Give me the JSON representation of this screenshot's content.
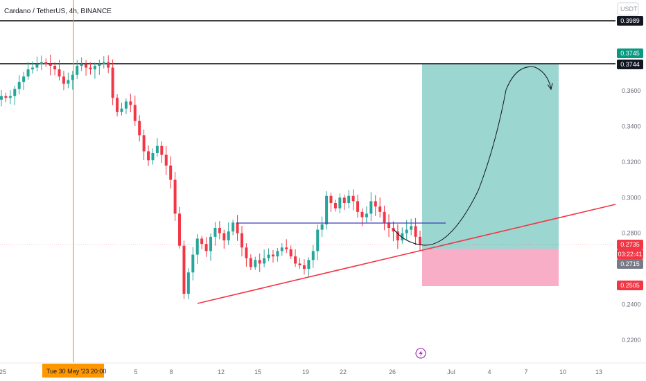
{
  "header": {
    "symbol": "Cardano / TetherUS, 4h, BINANCE",
    "currency": "USDT"
  },
  "colors": {
    "up": "#26a69a",
    "down": "#f23645",
    "trendline": "#f23645",
    "neckline": "#3f3ab8",
    "target_zone": "#80cbc4",
    "stop_zone": "#f8a5c2",
    "cursor": "#ff9800"
  },
  "chart_data": {
    "type": "candlestick",
    "title": "Cardano / TetherUS, 4h, BINANCE",
    "yaxis": {
      "min": 0.21,
      "max": 0.405,
      "ticks": [
        "0.3600",
        "0.3400",
        "0.3200",
        "0.3000",
        "0.2800",
        "0.2400",
        "0.2200"
      ]
    },
    "xaxis": {
      "ticks": [
        "25",
        "5",
        "8",
        "12",
        "15",
        "19",
        "22",
        "26",
        "Jul",
        "4",
        "7",
        "10",
        "13"
      ]
    },
    "crosshair_label": "Tue 30 May '23   20:00",
    "price_tags": [
      {
        "text": "0.3989",
        "value": 0.3989,
        "bg": "#131722"
      },
      {
        "text": "0.3745",
        "value": 0.3745,
        "bg": "#089981"
      },
      {
        "text": "0.3744",
        "value": 0.3744,
        "bg": "#131722"
      },
      {
        "text": "0.2735",
        "value": 0.2735,
        "bg": "#f23645"
      },
      {
        "text": "03:22:41",
        "value": 0.2705,
        "bg": "#f23645"
      },
      {
        "text": "0.2715",
        "value": 0.2715,
        "bg": "#787b86"
      },
      {
        "text": "0.2505",
        "value": 0.2505,
        "bg": "#f23645"
      }
    ],
    "horizontal_lines": [
      0.3989,
      0.3744
    ],
    "position": {
      "entry": 0.2715,
      "target": 0.3745,
      "stop": 0.2505
    },
    "neckline": 0.285,
    "current_price": 0.2735,
    "price_path": [
      0.357,
      0.356,
      0.357,
      0.361,
      0.365,
      0.368,
      0.372,
      0.373,
      0.375,
      0.376,
      0.375,
      0.374,
      0.372,
      0.368,
      0.364,
      0.366,
      0.369,
      0.374,
      0.375,
      0.373,
      0.372,
      0.374,
      0.375,
      0.376,
      0.373,
      0.356,
      0.348,
      0.35,
      0.354,
      0.352,
      0.343,
      0.335,
      0.326,
      0.321,
      0.325,
      0.329,
      0.324,
      0.318,
      0.31,
      0.291,
      0.273,
      0.246,
      0.258,
      0.268,
      0.277,
      0.274,
      0.27,
      0.278,
      0.283,
      0.28,
      0.276,
      0.281,
      0.286,
      0.28,
      0.272,
      0.266,
      0.261,
      0.265,
      0.263,
      0.266,
      0.268,
      0.267,
      0.27,
      0.272,
      0.271,
      0.267,
      0.263,
      0.262,
      0.26,
      0.265,
      0.27,
      0.282,
      0.285,
      0.301,
      0.297,
      0.294,
      0.3,
      0.297,
      0.301,
      0.298,
      0.292,
      0.289,
      0.291,
      0.298,
      0.295,
      0.292,
      0.286,
      0.283,
      0.281,
      0.276,
      0.28,
      0.282,
      0.284,
      0.278,
      0.2735
    ]
  }
}
